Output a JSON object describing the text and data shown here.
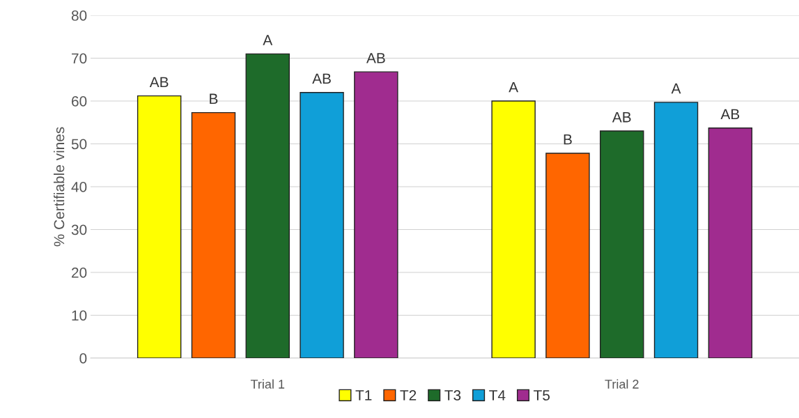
{
  "chart_data": {
    "type": "bar",
    "ylabel": "% Certifiable vines",
    "categories": [
      "Trial 1",
      "Trial 2"
    ],
    "series": [
      {
        "name": "T1",
        "color": "#ffff00",
        "values": [
          61.2,
          60.0
        ],
        "value_labels": [
          "AB",
          "A"
        ]
      },
      {
        "name": "T2",
        "color": "#ff6600",
        "values": [
          57.3,
          47.8
        ],
        "value_labels": [
          "B",
          "B"
        ]
      },
      {
        "name": "T3",
        "color": "#1e6b2a",
        "values": [
          71.0,
          53.0
        ],
        "value_labels": [
          "A",
          "AB"
        ]
      },
      {
        "name": "T4",
        "color": "#109fd8",
        "values": [
          62.0,
          59.7
        ],
        "value_labels": [
          "AB",
          "A"
        ]
      },
      {
        "name": "T5",
        "color": "#a02c8f",
        "values": [
          66.8,
          53.7
        ],
        "value_labels": [
          "AB",
          "AB"
        ]
      }
    ],
    "ylim": [
      0,
      80
    ],
    "yticks": [
      0,
      10,
      20,
      30,
      40,
      50,
      60,
      70,
      80
    ],
    "grid": "y",
    "legend": "bottom"
  }
}
